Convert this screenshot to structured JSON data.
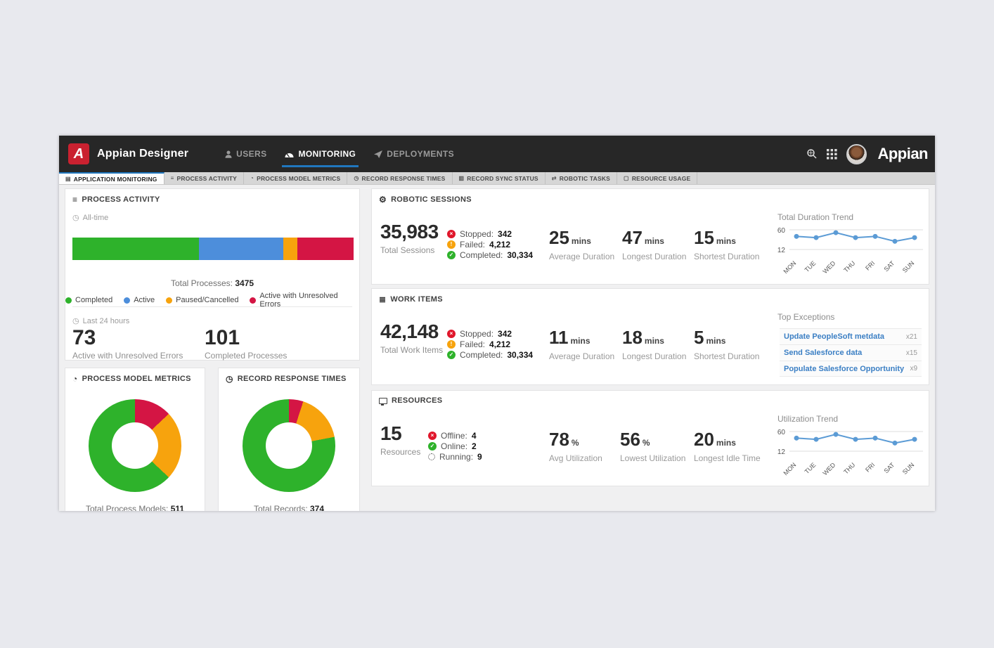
{
  "colors": {
    "green": "#2eb22b",
    "blue": "#4d8edb",
    "orange": "#f7a30d",
    "red": "#d41544",
    "line_blue": "#5b9bd5",
    "link_blue": "#3b7fc4",
    "accent_blue": "#2077be",
    "logo_red": "#ca2130",
    "navbar_bg": "#272727"
  },
  "navbar": {
    "logo_letter": "A",
    "app_title": "Appian Designer",
    "brand": "Appian",
    "items": [
      {
        "label": "USERS",
        "icon": "user-icon",
        "active": false
      },
      {
        "label": "MONITORING",
        "icon": "gauge-icon",
        "active": true
      },
      {
        "label": "DEPLOYMENTS",
        "icon": "paper-plane-icon",
        "active": false
      }
    ],
    "right_icons": [
      "search-icon",
      "app-grid-icon",
      "avatar"
    ]
  },
  "tabbar": {
    "tabs": [
      {
        "label": "APPLICATION MONITORING",
        "icon": "dashboard-icon",
        "active": true
      },
      {
        "label": "PROCESS ACTIVITY",
        "icon": "list-icon",
        "active": false
      },
      {
        "label": "PROCESS MODEL METRICS",
        "icon": "gauge-icon",
        "active": false
      },
      {
        "label": "RECORD RESPONSE TIMES",
        "icon": "clock-icon",
        "active": false
      },
      {
        "label": "RECORD SYNC STATUS",
        "icon": "copy-icon",
        "active": false
      },
      {
        "label": "ROBOTIC TASKS",
        "icon": "exchange-icon",
        "active": false
      },
      {
        "label": "RESOURCE USAGE",
        "icon": "monitor-icon",
        "active": false
      }
    ]
  },
  "process_activity": {
    "title": "PROCESS ACTIVITY",
    "timeframe": "All-time",
    "total_label": "Total Processes:",
    "total_value": "3475",
    "bar": [
      {
        "label": "Completed",
        "pct": 45,
        "color": "#2eb22b"
      },
      {
        "label": "Active",
        "pct": 30,
        "color": "#4d8edb"
      },
      {
        "label": "Paused/Cancelled",
        "pct": 5,
        "color": "#f7a30d"
      },
      {
        "label": "Active with Unresolved Errors",
        "pct": 20,
        "color": "#d41544"
      }
    ],
    "legend": [
      {
        "label": "Completed",
        "color": "#2eb22b"
      },
      {
        "label": "Active",
        "color": "#4d8edb"
      },
      {
        "label": "Paused/Cancelled",
        "color": "#f7a30d"
      },
      {
        "label": "Active with Unresolved Errors",
        "color": "#d41544"
      }
    ],
    "last24_label": "Last 24 hours",
    "stats": [
      {
        "value": "73",
        "label": "Active with Unresolved Errors"
      },
      {
        "value": "101",
        "label": "Completed Processes"
      }
    ]
  },
  "process_model_metrics": {
    "title": "PROCESS MODEL METRICS",
    "donut": [
      {
        "color": "#d41544",
        "pct": 13
      },
      {
        "color": "#f7a30d",
        "pct": 24
      },
      {
        "color": "#2eb22b",
        "pct": 63
      }
    ],
    "total_label": "Total Process Models:",
    "total_value": "511"
  },
  "record_response_times": {
    "title": "RECORD RESPONSE TIMES",
    "donut": [
      {
        "color": "#d41544",
        "pct": 5
      },
      {
        "color": "#f7a30d",
        "pct": 17
      },
      {
        "color": "#2eb22b",
        "pct": 78
      }
    ],
    "total_label": "Total Records:",
    "total_value": "374"
  },
  "robotic_sessions": {
    "title": "ROBOTIC SESSIONS",
    "total": {
      "value": "35,983",
      "label": "Total Sessions"
    },
    "statuses": [
      {
        "name": "Stopped:",
        "value": "342",
        "icon": "stop-x-icon",
        "color": "#e0162b",
        "glyph": "×"
      },
      {
        "name": "Failed:",
        "value": "4,212",
        "icon": "warning-icon",
        "color": "#f7a30d",
        "glyph": "!"
      },
      {
        "name": "Completed:",
        "value": "30,334",
        "icon": "check-icon",
        "color": "#2eb22b",
        "glyph": "✓"
      }
    ],
    "metrics": [
      {
        "value": "25",
        "unit": "mins",
        "label": "Average Duration"
      },
      {
        "value": "47",
        "unit": "mins",
        "label": "Longest Duration"
      },
      {
        "value": "15",
        "unit": "mins",
        "label": "Shortest Duration"
      }
    ],
    "trend": {
      "title": "Total Duration Trend",
      "yticks": [
        60,
        12
      ],
      "days": [
        "MON",
        "TUE",
        "WED",
        "THU",
        "FRI",
        "SAT",
        "SUN"
      ],
      "values": [
        44,
        41,
        53,
        41,
        44,
        32,
        41
      ],
      "line_color": "#5b9bd5"
    }
  },
  "work_items": {
    "title": "WORK ITEMS",
    "total": {
      "value": "42,148",
      "label": "Total Work Items"
    },
    "statuses": [
      {
        "name": "Stopped:",
        "value": "342",
        "icon": "stop-x-icon",
        "color": "#e0162b",
        "glyph": "×"
      },
      {
        "name": "Failed:",
        "value": "4,212",
        "icon": "warning-icon",
        "color": "#f7a30d",
        "glyph": "!"
      },
      {
        "name": "Completed:",
        "value": "30,334",
        "icon": "check-icon",
        "color": "#2eb22b",
        "glyph": "✓"
      }
    ],
    "metrics": [
      {
        "value": "11",
        "unit": "mins",
        "label": "Average Duration"
      },
      {
        "value": "18",
        "unit": "mins",
        "label": "Longest Duration"
      },
      {
        "value": "5",
        "unit": "mins",
        "label": "Shortest Duration"
      }
    ],
    "top_exceptions": {
      "title": "Top Exceptions",
      "rows": [
        {
          "label": "Update PeopleSoft metdata",
          "count": "x21"
        },
        {
          "label": "Send Salesforce data",
          "count": "x15"
        },
        {
          "label": "Populate Salesforce Opportunity",
          "count": "x9"
        }
      ]
    }
  },
  "resources": {
    "title": "RESOURCES",
    "total": {
      "value": "15",
      "label": "Resources"
    },
    "statuses": [
      {
        "name": "Offline:",
        "value": "4",
        "icon": "stop-x-icon",
        "color": "#e0162b",
        "glyph": "×"
      },
      {
        "name": "Online:",
        "value": "2",
        "icon": "check-icon",
        "color": "#2eb22b",
        "glyph": "✓"
      },
      {
        "name": "Running:",
        "value": "9",
        "icon": "spinner-icon",
        "color": "",
        "glyph": ""
      }
    ],
    "metrics": [
      {
        "value": "78",
        "unit": "%",
        "label": "Avg Utilization"
      },
      {
        "value": "56",
        "unit": "%",
        "label": "Lowest Utilization"
      },
      {
        "value": "20",
        "unit": "mins",
        "label": "Longest Idle Time"
      }
    ],
    "trend": {
      "title": "Utilization Trend",
      "yticks": [
        60,
        12
      ],
      "days": [
        "MON",
        "TUE",
        "WED",
        "THU",
        "FRI",
        "SAT",
        "SUN"
      ],
      "values": [
        44,
        41,
        53,
        41,
        44,
        32,
        41
      ],
      "line_color": "#5b9bd5"
    }
  },
  "chart_data": [
    {
      "id": "process-activity-stacked-bar",
      "type": "bar",
      "variant": "stacked-horizontal",
      "categories": [
        "Completed",
        "Active",
        "Paused/Cancelled",
        "Active with Unresolved Errors"
      ],
      "values": [
        45,
        30,
        5,
        20
      ],
      "value_unit": "percent-of-bar",
      "title": "Process Activity (All-time)",
      "total_processes": 3475
    },
    {
      "id": "process-model-metrics-donut",
      "type": "pie",
      "variant": "donut",
      "categories": [
        "red",
        "orange",
        "green"
      ],
      "values": [
        13,
        24,
        63
      ],
      "value_unit": "percent",
      "total_process_models": 511
    },
    {
      "id": "record-response-times-donut",
      "type": "pie",
      "variant": "donut",
      "categories": [
        "red",
        "orange",
        "green"
      ],
      "values": [
        5,
        17,
        78
      ],
      "value_unit": "percent",
      "total_records": 374
    },
    {
      "id": "total-duration-trend",
      "type": "line",
      "title": "Total Duration Trend",
      "x": [
        "MON",
        "TUE",
        "WED",
        "THU",
        "FRI",
        "SAT",
        "SUN"
      ],
      "values": [
        44,
        41,
        53,
        41,
        44,
        32,
        41
      ],
      "yticks": [
        60,
        12
      ],
      "ylim": [
        12,
        60
      ]
    },
    {
      "id": "utilization-trend",
      "type": "line",
      "title": "Utilization Trend",
      "x": [
        "MON",
        "TUE",
        "WED",
        "THU",
        "FRI",
        "SAT",
        "SUN"
      ],
      "values": [
        44,
        41,
        53,
        41,
        44,
        32,
        41
      ],
      "yticks": [
        60,
        12
      ],
      "ylim": [
        12,
        60
      ]
    }
  ]
}
